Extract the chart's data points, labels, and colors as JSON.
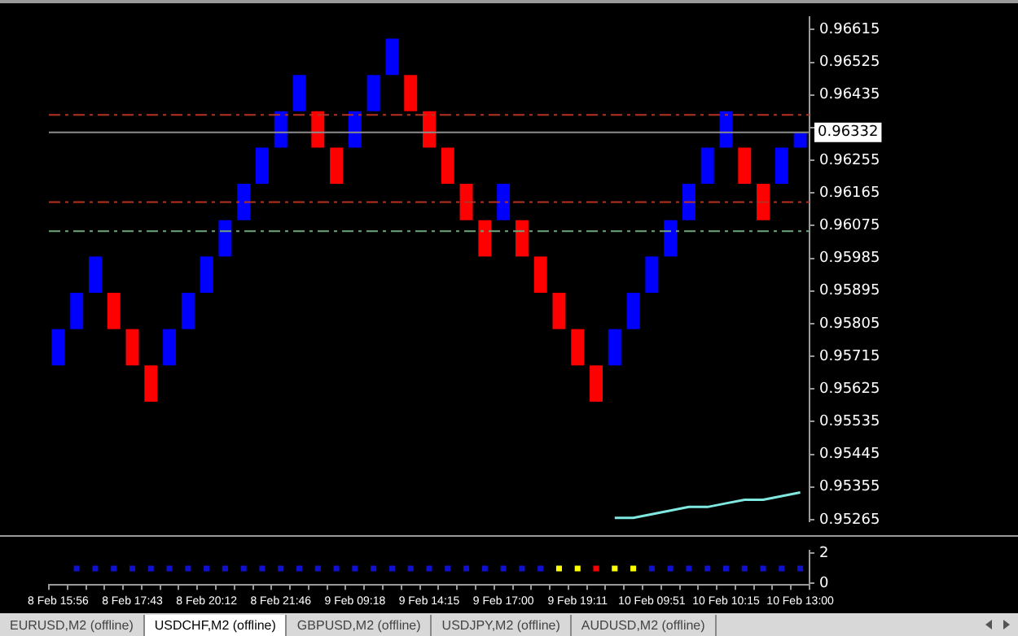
{
  "chart_data": [
    {
      "type": "bar",
      "categories": [
        null,
        null,
        null,
        null,
        null,
        null,
        null,
        null,
        null,
        null,
        null,
        null,
        null,
        null,
        null,
        null,
        null,
        null,
        null,
        null,
        null,
        null,
        null,
        null,
        null,
        null,
        null,
        null,
        null,
        null,
        null,
        null,
        null,
        null,
        null,
        null,
        null,
        null,
        null,
        null,
        null
      ],
      "series": [
        {
          "type": "bar",
          "base": [
            0.9569,
            0.9579,
            0.9589,
            0.9579,
            0.9569,
            0.9559,
            0.9569,
            0.9579,
            0.9589,
            0.9599,
            0.9609,
            0.9619,
            0.9629,
            0.9639,
            0.9629,
            0.9619,
            0.9629,
            0.9639,
            0.9649,
            0.9639,
            0.9629,
            0.9619,
            0.9609,
            0.9599,
            0.9609,
            0.9599,
            0.9589,
            0.9579,
            0.9569,
            0.9559,
            0.9569,
            0.9579,
            0.9589,
            0.9599,
            0.9609,
            0.9619,
            0.9629,
            0.9619,
            0.9609,
            0.9619,
            0.9629
          ],
          "values": [
            0.001,
            0.001,
            0.001,
            0.001,
            0.001,
            0.001,
            0.001,
            0.001,
            0.001,
            0.001,
            0.001,
            0.001,
            0.001,
            0.001,
            0.001,
            0.001,
            0.001,
            0.001,
            0.001,
            0.001,
            0.001,
            0.001,
            0.001,
            0.001,
            0.001,
            0.001,
            0.001,
            0.001,
            0.001,
            0.001,
            0.001,
            0.001,
            0.001,
            0.001,
            0.001,
            0.001,
            0.001,
            0.001,
            0.001,
            0.001,
            0.0004
          ],
          "colors": [
            "#0000ff",
            "#0000ff",
            "#0000ff",
            "#ff0000",
            "#ff0000",
            "#ff0000",
            "#0000ff",
            "#0000ff",
            "#0000ff",
            "#0000ff",
            "#0000ff",
            "#0000ff",
            "#0000ff",
            "#0000ff",
            "#ff0000",
            "#ff0000",
            "#0000ff",
            "#0000ff",
            "#0000ff",
            "#ff0000",
            "#ff0000",
            "#ff0000",
            "#ff0000",
            "#ff0000",
            "#0000ff",
            "#ff0000",
            "#ff0000",
            "#ff0000",
            "#ff0000",
            "#ff0000",
            "#0000ff",
            "#0000ff",
            "#0000ff",
            "#0000ff",
            "#0000ff",
            "#0000ff",
            "#0000ff",
            "#ff0000",
            "#ff0000",
            "#0000ff",
            "#0000ff"
          ]
        },
        {
          "type": "line",
          "color": "#7fe8e0",
          "values": [
            null,
            null,
            null,
            null,
            null,
            null,
            null,
            null,
            null,
            null,
            null,
            null,
            null,
            null,
            null,
            null,
            null,
            null,
            null,
            null,
            null,
            null,
            null,
            null,
            null,
            null,
            null,
            null,
            null,
            null,
            0.9527,
            0.9527,
            0.9528,
            0.9529,
            0.953,
            0.953,
            0.9531,
            0.9532,
            0.9532,
            0.9533,
            0.9534
          ]
        }
      ],
      "ylim": [
        0.9526,
        0.9665
      ],
      "yticks": [
        0.95265,
        0.95355,
        0.95445,
        0.95535,
        0.95625,
        0.95715,
        0.95805,
        0.95895,
        0.95985,
        0.96075,
        0.96165,
        0.96255,
        {
          "value": 0.96345,
          "label": null
        },
        0.96435,
        0.96525,
        0.96615
      ],
      "ref_lines": [
        {
          "axis": "y",
          "value": 0.9638,
          "color": "#b83222",
          "line_style": "dashed"
        },
        {
          "axis": "y",
          "value": 0.96332,
          "label": "0.96332",
          "color": "#8c8c8c",
          "line_style": "solid"
        },
        {
          "axis": "y",
          "value": 0.9614,
          "color": "#b83222",
          "line_style": "dashed"
        },
        {
          "axis": "y",
          "value": 0.9606,
          "color": "#6fa57a",
          "line_style": "dashed"
        }
      ],
      "tick_labels": "y",
      "legend": false
    },
    {
      "type": "scatter",
      "categories": [
        "8 Feb 15:56",
        null,
        null,
        null,
        "8 Feb 17:43",
        null,
        null,
        null,
        "8 Feb 20:12",
        null,
        null,
        null,
        "8 Feb 21:46",
        null,
        null,
        null,
        "9 Feb 09:18",
        null,
        null,
        null,
        "9 Feb 14:15",
        null,
        null,
        null,
        "9 Feb 17:00",
        null,
        null,
        null,
        "9 Feb 19:11",
        null,
        null,
        null,
        "10 Feb 09:51",
        null,
        null,
        null,
        "10 Feb 10:15",
        null,
        null,
        null,
        "10 Feb 13:00"
      ],
      "values": [
        null,
        1,
        1,
        1,
        1,
        1,
        1,
        1,
        1,
        1,
        1,
        1,
        1,
        1,
        1,
        1,
        1,
        1,
        1,
        1,
        1,
        1,
        1,
        1,
        1,
        1,
        1,
        1,
        1,
        1,
        1,
        1,
        1,
        1,
        1,
        1,
        1,
        1,
        1,
        1,
        1
      ],
      "colors": [
        "#1010d0",
        "#1010d0",
        "#1010d0",
        "#1010d0",
        "#1010d0",
        "#1010d0",
        "#1010d0",
        "#1010d0",
        "#1010d0",
        "#1010d0",
        "#1010d0",
        "#1010d0",
        "#1010d0",
        "#1010d0",
        "#1010d0",
        "#1010d0",
        "#1010d0",
        "#1010d0",
        "#1010d0",
        "#1010d0",
        "#1010d0",
        "#1010d0",
        "#1010d0",
        "#1010d0",
        "#1010d0",
        "#1010d0",
        "#1010d0",
        "#ffff00",
        "#ffff00",
        "#ff0000",
        "#ffff00",
        "#ffff00",
        "#1010d0",
        "#1010d0",
        "#1010d0",
        "#1010d0",
        "#1010d0",
        "#1010d0",
        "#1010d0",
        "#1010d0",
        "#1010d0"
      ],
      "marker": "square",
      "ylim": [
        -0.1,
        2.2
      ],
      "yticks": [
        0,
        2
      ],
      "legend": false,
      "annotations": [
        "EURUSD,M2 (offline)",
        "USDCHF,M2 (offline)",
        "GBPUSD,M2 (offline)",
        "USDJPY,M2 (offline)",
        "AUDUSD,M2 (offline)"
      ]
    }
  ]
}
